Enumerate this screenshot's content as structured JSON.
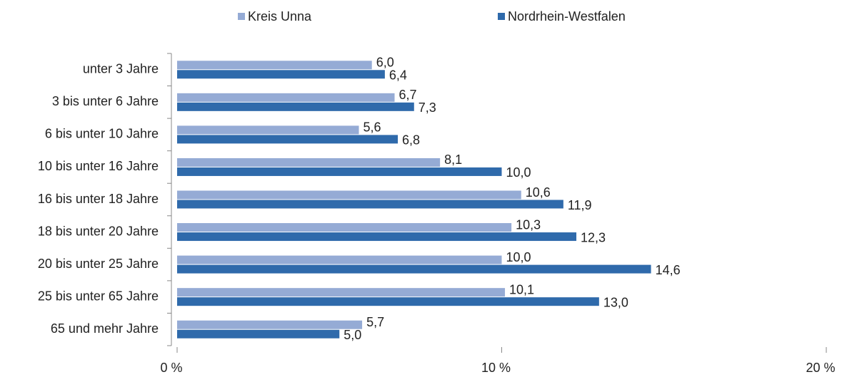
{
  "chart_data": {
    "type": "hbar",
    "categories": [
      "unter 3 Jahre",
      "3 bis unter 6 Jahre",
      "6 bis unter 10 Jahre",
      "10 bis unter 16 Jahre",
      "16 bis unter 18 Jahre",
      "18 bis unter 20 Jahre",
      "20 bis unter 25 Jahre",
      "25 bis unter 65 Jahre",
      "65 und mehr Jahre"
    ],
    "series": [
      {
        "name": "Kreis Unna",
        "color": "#95abd5",
        "values": [
          6.0,
          6.7,
          5.6,
          8.1,
          10.6,
          10.3,
          10.0,
          10.1,
          5.7
        ],
        "value_labels": [
          "6,0",
          "6,7",
          "5,6",
          "8,1",
          "10,6",
          "10,3",
          "10,0",
          "10,1",
          "5,7"
        ]
      },
      {
        "name": "Nordrhein-Westfalen",
        "color": "#2f6aab",
        "values": [
          6.4,
          7.3,
          6.8,
          10.0,
          11.9,
          12.3,
          14.6,
          13.0,
          5.0
        ],
        "value_labels": [
          "6,4",
          "7,3",
          "6,8",
          "10,0",
          "11,9",
          "12,3",
          "14,6",
          "13,0",
          "5,0"
        ]
      }
    ],
    "xlim": [
      0,
      20
    ],
    "xticks": [
      {
        "value": 0,
        "label": "0 %"
      },
      {
        "value": 10,
        "label": "10 %"
      },
      {
        "value": 20,
        "label": "20 %"
      }
    ],
    "legend": "top"
  }
}
